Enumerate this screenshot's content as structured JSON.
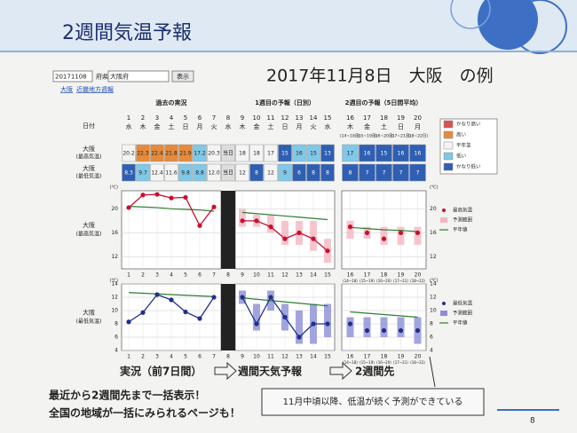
{
  "title": "2週間気温予報",
  "subtitle": "2017年11月8日　大阪　の例",
  "controls": {
    "date": "20171108",
    "pref_label": "府県",
    "pref": "大阪府",
    "button": "表示",
    "links": [
      "大阪",
      "近畿地方週報"
    ]
  },
  "table": {
    "headers": [
      "過去の実況",
      "1週目の予報（日別）",
      "2週目の予報（5日間平均）"
    ],
    "date_label": "日付",
    "days": [
      "1",
      "2",
      "3",
      "4",
      "5",
      "6",
      "7",
      "8",
      "9",
      "10",
      "11",
      "12",
      "13",
      "14",
      "15",
      "16",
      "17",
      "18",
      "19",
      "20"
    ],
    "weekdays": [
      "水",
      "木",
      "金",
      "土",
      "日",
      "月",
      "火",
      "水",
      "木",
      "金",
      "土",
      "日",
      "月",
      "火",
      "水",
      "木",
      "金",
      "土",
      "日",
      "月"
    ],
    "week2_ranges": [
      "(14~18日)",
      "(15~19日)",
      "(16~20日)",
      "(17~21日)",
      "(18~22日)"
    ],
    "rows": [
      {
        "label": "大阪",
        "sublabel": "(最高気温)",
        "cells": [
          "20.2",
          "22.3",
          "22.4",
          "21.8",
          "21.9",
          "17.2",
          "20.3",
          "当日",
          "18",
          "18",
          "17",
          "15",
          "16",
          "15",
          "13",
          "17",
          "16",
          "15",
          "16",
          "16"
        ],
        "colors": [
          "#f4f4f4",
          "#e58a3c",
          "#e58a3c",
          "#e58a3c",
          "#e58a3c",
          "#7fc8e8",
          "#f4f4f4",
          "#dddddd",
          "#f4f4f4",
          "#f4f4f4",
          "#f4f4f4",
          "#2f5fb3",
          "#7fc8e8",
          "#7fc8e8",
          "#2f5fb3",
          "#7fc8e8",
          "#2f5fb3",
          "#2f5fb3",
          "#2f5fb3",
          "#2f5fb3"
        ]
      },
      {
        "label": "大阪",
        "sublabel": "(最低気温)",
        "cells": [
          "8.3",
          "9.7",
          "12.4",
          "11.6",
          "9.8",
          "8.8",
          "12.0",
          "当日",
          "12",
          "8",
          "12",
          "9",
          "6",
          "8",
          "8",
          "8",
          "7",
          "7",
          "7",
          "7"
        ],
        "colors": [
          "#2f5fb3",
          "#7fc8e8",
          "#f4f4f4",
          "#f4f4f4",
          "#7fc8e8",
          "#7fc8e8",
          "#f4f4f4",
          "#dddddd",
          "#f4f4f4",
          "#2f5fb3",
          "#f4f4f4",
          "#7fc8e8",
          "#2f5fb3",
          "#2f5fb3",
          "#2f5fb3",
          "#2f5fb3",
          "#2f5fb3",
          "#2f5fb3",
          "#2f5fb3",
          "#2f5fb3"
        ]
      }
    ]
  },
  "color_legend": {
    "labels": [
      "かなり高い",
      "高い",
      "平年並",
      "低い",
      "かなり低い"
    ],
    "colors": [
      "#d9534f",
      "#e58a3c",
      "#f4f4f4",
      "#7fc8e8",
      "#2f5fb3"
    ]
  },
  "chart_data": [
    {
      "type": "line",
      "label": "大阪",
      "sublabel": "(最高気温)",
      "unit": "(℃)",
      "categories": [
        "1",
        "2",
        "3",
        "4",
        "5",
        "6",
        "7",
        "8",
        "9",
        "10",
        "11",
        "12",
        "13",
        "14",
        "15",
        "16",
        "17",
        "18",
        "19",
        "20"
      ],
      "week2_sublabels": [
        "(14~18)",
        "(15~19)",
        "(16~20)",
        "(17~21)",
        "(18~22)"
      ],
      "ylim": [
        10,
        23
      ],
      "yticks": [
        12,
        16,
        20
      ],
      "grid": true,
      "series": [
        {
          "name": "最高気温",
          "color": "#c8102e",
          "values": [
            20.2,
            22.3,
            22.4,
            21.8,
            21.9,
            17.2,
            20.3,
            null,
            18,
            18,
            17,
            15,
            16,
            15,
            13,
            17,
            16,
            15,
            16,
            16
          ]
        },
        {
          "name": "予測範囲",
          "color": "#f4b6c2",
          "low": [
            null,
            null,
            null,
            null,
            null,
            null,
            null,
            null,
            17,
            17,
            16,
            14,
            14,
            13,
            11,
            15,
            15,
            14,
            14,
            14
          ],
          "high": [
            null,
            null,
            null,
            null,
            null,
            null,
            null,
            null,
            20,
            19,
            19,
            18,
            18,
            18,
            15,
            18,
            17,
            17,
            17,
            17
          ]
        },
        {
          "name": "平年値",
          "color": "#2e7d32",
          "values": [
            20.4,
            20.3,
            20.2,
            20.0,
            19.9,
            19.8,
            19.6,
            null,
            19.4,
            19.2,
            19.0,
            18.8,
            18.6,
            18.4,
            18.2,
            16.9,
            16.7,
            16.5,
            16.4,
            16.2
          ]
        }
      ]
    },
    {
      "type": "line",
      "label": "大阪",
      "sublabel": "(最低気温)",
      "unit": "(℃)",
      "categories": [
        "1",
        "2",
        "3",
        "4",
        "5",
        "6",
        "7",
        "8",
        "9",
        "10",
        "11",
        "12",
        "13",
        "14",
        "15",
        "16",
        "17",
        "18",
        "19",
        "20"
      ],
      "week2_sublabels": [
        "(14~18)",
        "(15~19)",
        "(16~20)",
        "(17~21)",
        "(18~22)"
      ],
      "ylim": [
        4,
        14
      ],
      "yticks": [
        4,
        6,
        8,
        10,
        12,
        14
      ],
      "grid": true,
      "series": [
        {
          "name": "最低気温",
          "color": "#1f2f8f",
          "values": [
            8.3,
            9.7,
            12.4,
            11.6,
            9.8,
            8.8,
            12.0,
            null,
            12,
            8,
            12,
            9,
            6,
            8,
            8,
            8,
            7,
            7,
            7,
            7
          ]
        },
        {
          "name": "予測範囲",
          "color": "#8b8fd6",
          "low": [
            null,
            null,
            null,
            null,
            null,
            null,
            null,
            null,
            11,
            7,
            10,
            7,
            5,
            5,
            6,
            6,
            6,
            6,
            6,
            5
          ],
          "high": [
            null,
            null,
            null,
            null,
            null,
            null,
            null,
            null,
            13,
            11,
            13,
            11,
            10,
            11,
            11,
            9,
            9,
            9,
            9,
            9
          ]
        },
        {
          "name": "平年値",
          "color": "#2e7d32",
          "values": [
            12.7,
            12.6,
            12.5,
            12.4,
            12.3,
            12.2,
            12.1,
            null,
            11.9,
            11.7,
            11.5,
            11.3,
            11.1,
            10.9,
            10.7,
            9.8,
            9.6,
            9.4,
            9.2,
            9.0
          ]
        }
      ]
    }
  ],
  "flow": [
    "実況（前7日間）",
    "週間天気予報",
    "2週間先"
  ],
  "notes": [
    "最近から2週間先まで一括表示！",
    "全国の地域が一括にみられるページも！"
  ],
  "callout": "11月中頃以降、低温が続く予測ができている",
  "page_number": "8"
}
